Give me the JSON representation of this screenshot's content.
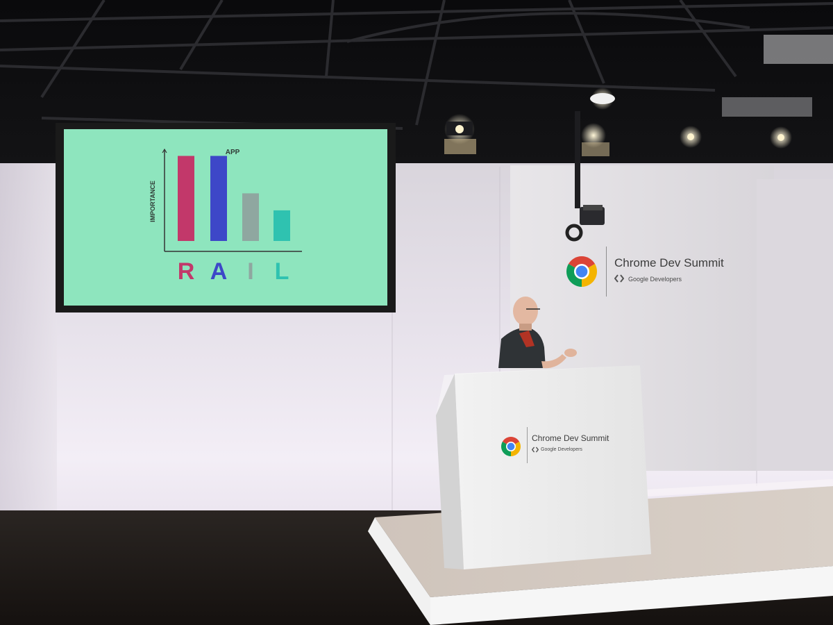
{
  "slide": {
    "title": "APP",
    "y_axis_label": "IMPORTANCE",
    "letters": [
      "R",
      "A",
      "I",
      "L"
    ]
  },
  "chart_data": {
    "type": "bar",
    "title": "APP",
    "ylabel": "IMPORTANCE",
    "categories": [
      "R",
      "A",
      "I",
      "L"
    ],
    "values": [
      100,
      100,
      56,
      36
    ],
    "ylim": [
      0,
      120
    ],
    "colors": [
      "#c2386a",
      "#3d47c8",
      "#8fa7a0",
      "#2fc2b0"
    ],
    "background": "#8ee5be"
  },
  "backdrop_brand": {
    "title": "Chrome Dev Summit",
    "subtitle": "Google Developers"
  },
  "podium_brand": {
    "title": "Chrome Dev Summit",
    "subtitle": "Google Developers"
  },
  "colors": {
    "chrome_red": "#db4437",
    "chrome_green": "#0f9d58",
    "chrome_yellow": "#f4b400",
    "chrome_blue": "#4285f4"
  }
}
